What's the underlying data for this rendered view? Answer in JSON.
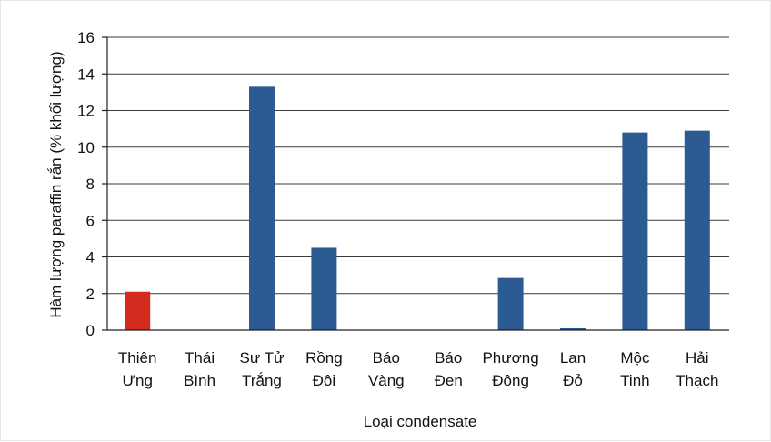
{
  "chart_data": {
    "type": "bar",
    "xlabel": "Loại condensate",
    "ylabel": "Hàm lượng paraffin rắn (% khối lượng)",
    "ylim": [
      0,
      16
    ],
    "yticks": [
      0,
      2,
      4,
      6,
      8,
      10,
      12,
      14,
      16
    ],
    "grid": true,
    "categories": [
      [
        "Thiên",
        "Ưng"
      ],
      [
        "Thái",
        "Bình"
      ],
      [
        "Sư Tử",
        "Trắng"
      ],
      [
        "Rồng",
        "Đôi"
      ],
      [
        "Báo",
        "Vàng"
      ],
      [
        "Báo",
        "Đen"
      ],
      [
        "Phương",
        "Đông"
      ],
      [
        "Lan",
        "Đỏ"
      ],
      [
        "Mộc",
        "Tinh"
      ],
      [
        "Hải",
        "Thạch"
      ]
    ],
    "values": [
      2.1,
      0,
      13.3,
      4.5,
      0,
      0,
      2.85,
      0.1,
      10.8,
      10.9
    ],
    "colors": [
      "#d52b1e",
      "#2c5b94",
      "#2c5b94",
      "#2c5b94",
      "#2c5b94",
      "#2c5b94",
      "#2c5b94",
      "#2c5b94",
      "#2c5b94",
      "#2c5b94"
    ]
  }
}
